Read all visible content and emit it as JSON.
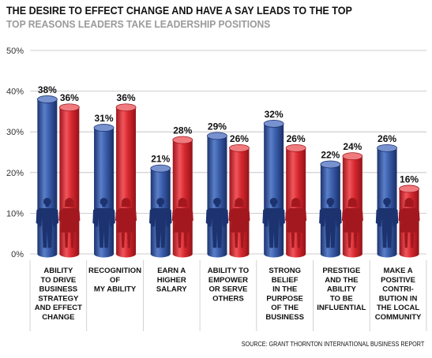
{
  "header": {
    "title": "THE DESIRE TO EFFECT CHANGE AND HAVE A SAY LEADS TO THE TOP",
    "subtitle": "TOP REASONS LEADERS TAKE LEADERSHIP POSITIONS"
  },
  "source": "SOURCE: GRANT THORNTON INTERNATIONAL BUSINESS REPORT",
  "colors": {
    "male": "#2e4f9a",
    "female": "#d7282f"
  },
  "chart_data": {
    "type": "bar",
    "title": "THE DESIRE TO EFFECT CHANGE AND HAVE A SAY LEADS TO THE TOP",
    "subtitle": "TOP REASONS LEADERS TAKE LEADERSHIP POSITIONS",
    "categories": [
      "ABILITY TO DRIVE BUSINESS STRATEGY AND EFFECT CHANGE",
      "RECOGNITION OF MY ABILITY",
      "EARN A HIGHER SALARY",
      "ABILITY TO EMPOWER OR SERVE OTHERS",
      "STRONG BELIEF IN THE PURPOSE OF THE BUSINESS",
      "PRESTIGE AND THE ABILITY TO BE INFLUENTIAL",
      "MAKE A POSITIVE CONTRIBUTION IN THE LOCAL COMMUNITY"
    ],
    "category_lines": [
      [
        "ABILITY",
        "TO DRIVE",
        "BUSINESS",
        "STRATEGY",
        "AND EFFECT",
        "CHANGE"
      ],
      [
        "RECOGNITION",
        "OF",
        "MY ABILITY"
      ],
      [
        "EARN A",
        "HIGHER",
        "SALARY"
      ],
      [
        "ABILITY TO",
        "EMPOWER",
        "OR SERVE",
        "OTHERS"
      ],
      [
        "STRONG",
        "BELIEF",
        "IN THE",
        "PURPOSE",
        "OF THE",
        "BUSINESS"
      ],
      [
        "PRESTIGE",
        "AND THE",
        "ABILITY",
        "TO BE",
        "INFLUENTIAL"
      ],
      [
        "MAKE A",
        "POSITIVE",
        "CONTRI-",
        "BUTION IN",
        "THE LOCAL",
        "COMMUNITY"
      ]
    ],
    "series": [
      {
        "name": "",
        "color": "#2e4f9a",
        "values": [
          38,
          31,
          21,
          29,
          32,
          22,
          26
        ],
        "labels": [
          "38%",
          "31%",
          "21%",
          "29%",
          "32%",
          "22%",
          "26%"
        ]
      },
      {
        "name": "",
        "color": "#d7282f",
        "values": [
          36,
          36,
          28,
          26,
          26,
          24,
          16
        ],
        "labels": [
          "36%",
          "36%",
          "28%",
          "26%",
          "26%",
          "24%",
          "16%"
        ]
      }
    ],
    "yticks": [
      "0%",
      "10%",
      "20%",
      "30%",
      "40%",
      "50%"
    ],
    "ylim": [
      0,
      50
    ],
    "grid": true,
    "legend": "none"
  }
}
